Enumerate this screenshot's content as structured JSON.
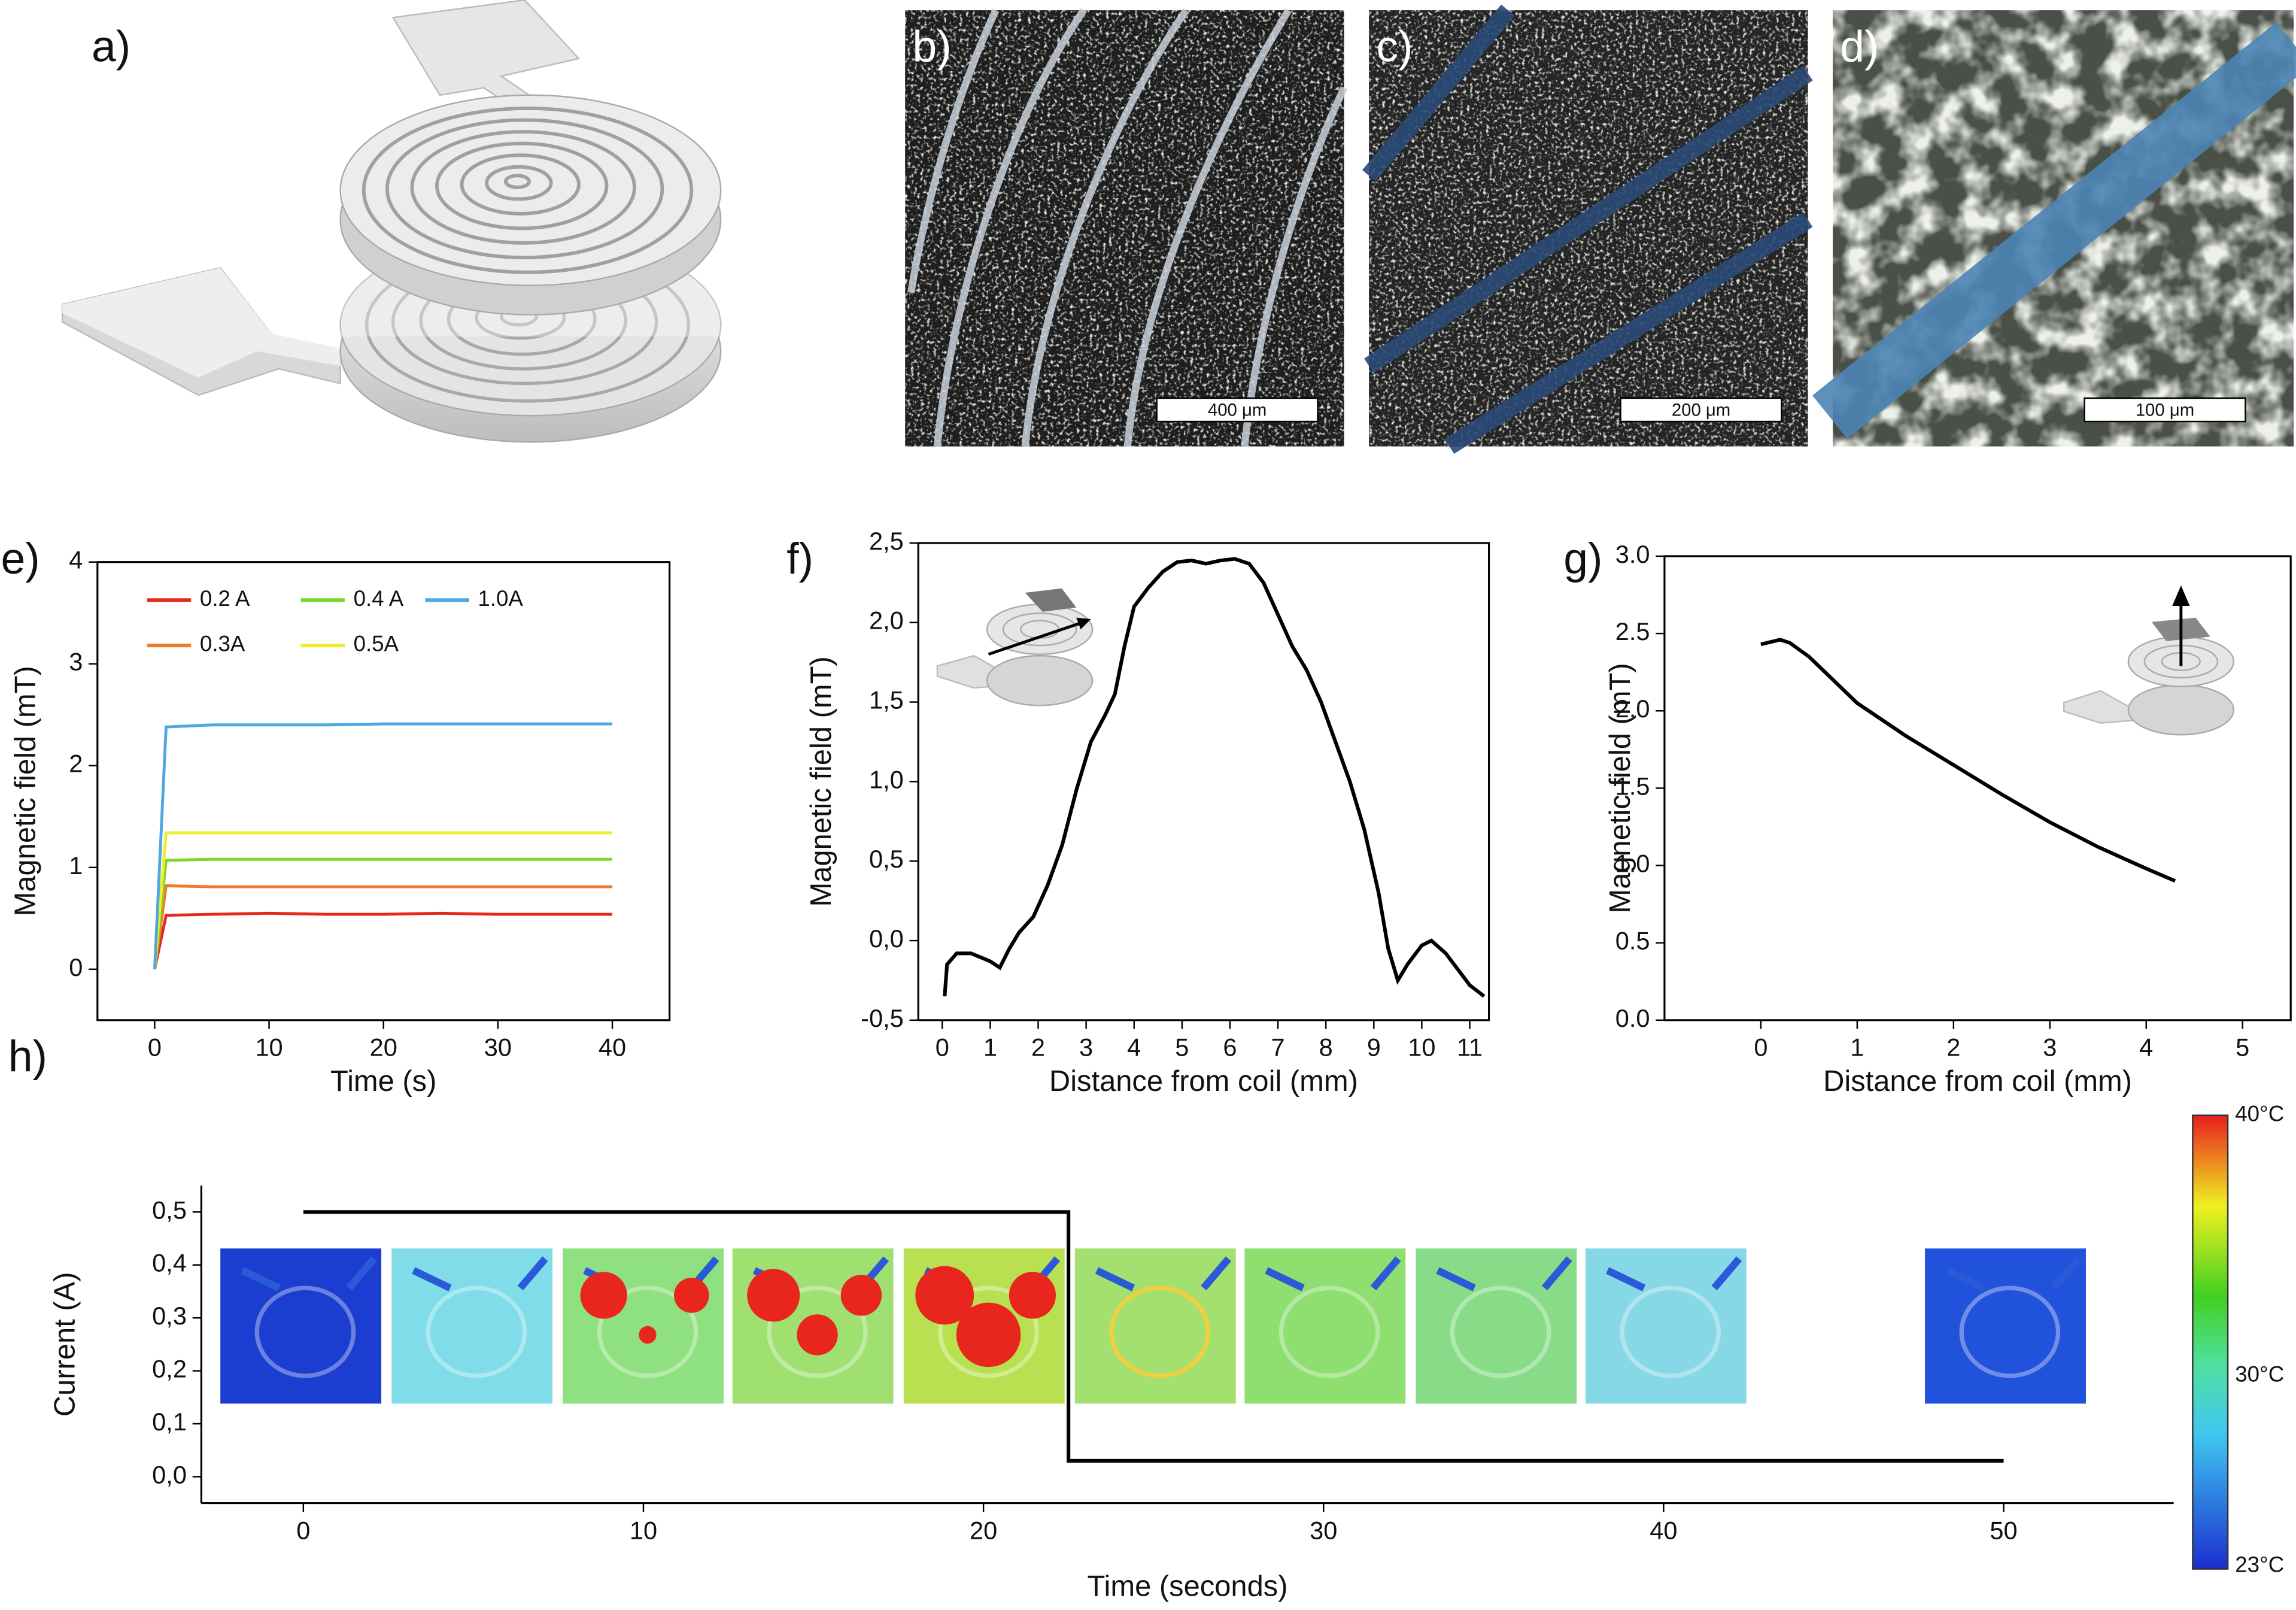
{
  "panels": {
    "a": {
      "label": "a)"
    },
    "b": {
      "label": "b)",
      "scale_bar": "400 μm"
    },
    "c": {
      "label": "c)",
      "scale_bar": "200 μm"
    },
    "d": {
      "label": "d)",
      "scale_bar": "100 μm"
    }
  },
  "colorbar": {
    "labels": [
      "40°C",
      "30°C",
      "23°C"
    ]
  },
  "chart_data": [
    {
      "type": "line",
      "panel_label": "e)",
      "x_label": "Time (s)",
      "y_label": "Magnetic field (mT)",
      "x": [
        0,
        1,
        5,
        10,
        15,
        20,
        25,
        30,
        35,
        40
      ],
      "series": [
        {
          "name": "0.2 A",
          "color": "#e42a1e",
          "values": [
            0,
            0.53,
            0.54,
            0.55,
            0.54,
            0.54,
            0.55,
            0.54,
            0.54,
            0.54
          ]
        },
        {
          "name": "0.3A",
          "color": "#f07a28",
          "values": [
            0,
            0.82,
            0.81,
            0.81,
            0.81,
            0.81,
            0.81,
            0.81,
            0.81,
            0.81
          ]
        },
        {
          "name": "0.4 A",
          "color": "#7dd62a",
          "values": [
            0,
            1.07,
            1.08,
            1.08,
            1.08,
            1.08,
            1.08,
            1.08,
            1.08,
            1.08
          ]
        },
        {
          "name": "0.5A",
          "color": "#eeee2a",
          "values": [
            0,
            1.34,
            1.34,
            1.34,
            1.34,
            1.34,
            1.34,
            1.34,
            1.34,
            1.34
          ]
        },
        {
          "name": "1.0A",
          "color": "#4ea8e0",
          "values": [
            0,
            2.38,
            2.4,
            2.4,
            2.4,
            2.41,
            2.41,
            2.41,
            2.41,
            2.41
          ]
        }
      ],
      "xlim": [
        -5,
        45
      ],
      "xticks": [
        0,
        10,
        20,
        30,
        40
      ],
      "ylim": [
        -0.5,
        4
      ],
      "yticks": [
        0,
        1,
        2,
        3,
        4
      ]
    },
    {
      "type": "line",
      "panel_label": "f)",
      "x_label": "Distance from coil (mm)",
      "y_label": "Magnetic field (mT)",
      "x": [
        0.05,
        0.1,
        0.3,
        0.6,
        1.0,
        1.2,
        1.4,
        1.6,
        1.9,
        2.2,
        2.5,
        2.8,
        3.1,
        3.4,
        3.6,
        3.8,
        4.0,
        4.3,
        4.6,
        4.9,
        5.2,
        5.5,
        5.8,
        6.1,
        6.4,
        6.7,
        7.0,
        7.3,
        7.6,
        7.9,
        8.2,
        8.5,
        8.8,
        9.1,
        9.3,
        9.5,
        9.7,
        10.0,
        10.2,
        10.5,
        10.8,
        11.0,
        11.3
      ],
      "values": [
        -0.35,
        -0.15,
        -0.08,
        -0.08,
        -0.13,
        -0.17,
        -0.05,
        0.05,
        0.15,
        0.35,
        0.6,
        0.95,
        1.25,
        1.42,
        1.55,
        1.85,
        2.1,
        2.22,
        2.32,
        2.38,
        2.39,
        2.37,
        2.39,
        2.4,
        2.37,
        2.25,
        2.05,
        1.85,
        1.7,
        1.5,
        1.25,
        1.0,
        0.7,
        0.3,
        -0.05,
        -0.25,
        -0.15,
        -0.03,
        0.0,
        -0.08,
        -0.2,
        -0.28,
        -0.35
      ],
      "color": "#000000",
      "xlim": [
        -0.5,
        11.4
      ],
      "xticks": [
        0,
        1,
        2,
        3,
        4,
        5,
        6,
        7,
        8,
        9,
        10,
        11
      ],
      "ylim": [
        -0.5,
        2.5
      ],
      "yticks": [
        {
          "value": -0.5,
          "label": "-0,5"
        },
        {
          "value": 0,
          "label": "0,0"
        },
        {
          "value": 0.5,
          "label": "0,5"
        },
        {
          "value": 1,
          "label": "1,0"
        },
        {
          "value": 1.5,
          "label": "1,5"
        },
        {
          "value": 2,
          "label": "2,0"
        },
        {
          "value": 2.5,
          "label": "2,5"
        }
      ]
    },
    {
      "type": "line",
      "panel_label": "g)",
      "x_label": "Distance from coil (mm)",
      "y_label": "Magnetic field (mT)",
      "x": [
        0,
        0.2,
        0.3,
        0.5,
        1,
        1.5,
        2,
        2.5,
        3,
        3.5,
        4,
        4.3
      ],
      "values": [
        2.43,
        2.46,
        2.44,
        2.35,
        2.05,
        1.84,
        1.65,
        1.46,
        1.28,
        1.12,
        0.98,
        0.9
      ],
      "color": "#000000",
      "xlim": [
        -1,
        5.5
      ],
      "xticks": [
        0,
        1,
        2,
        3,
        4,
        5
      ],
      "ylim": [
        0,
        3
      ],
      "yticks": [
        {
          "value": 0,
          "label": "0.0"
        },
        {
          "value": 0.5,
          "label": "0.5"
        },
        {
          "value": 1,
          "label": "1.0"
        },
        {
          "value": 1.5,
          "label": "1.5"
        },
        {
          "value": 2,
          "label": "2.0"
        },
        {
          "value": 2.5,
          "label": "2.5"
        },
        {
          "value": 3,
          "label": "3.0"
        }
      ]
    },
    {
      "type": "line",
      "panel_label": "h)",
      "x_label": "Time (seconds)",
      "y_label": "Current (A)",
      "x": [
        0,
        22.5,
        22.5,
        50
      ],
      "values": [
        0.5,
        0.5,
        0.03,
        0.03
      ],
      "color": "#000000",
      "xlim": [
        -3,
        55
      ],
      "xticks": [
        0,
        10,
        20,
        30,
        40,
        50
      ],
      "ylim": [
        -0.05,
        0.55
      ],
      "yticks": [
        {
          "value": 0,
          "label": "0,0"
        },
        {
          "value": 0.1,
          "label": "0,1"
        },
        {
          "value": 0.2,
          "label": "0,2"
        },
        {
          "value": 0.3,
          "label": "0,3"
        },
        {
          "value": 0.4,
          "label": "0,4"
        },
        {
          "value": 0.5,
          "label": "0,5"
        }
      ]
    }
  ]
}
